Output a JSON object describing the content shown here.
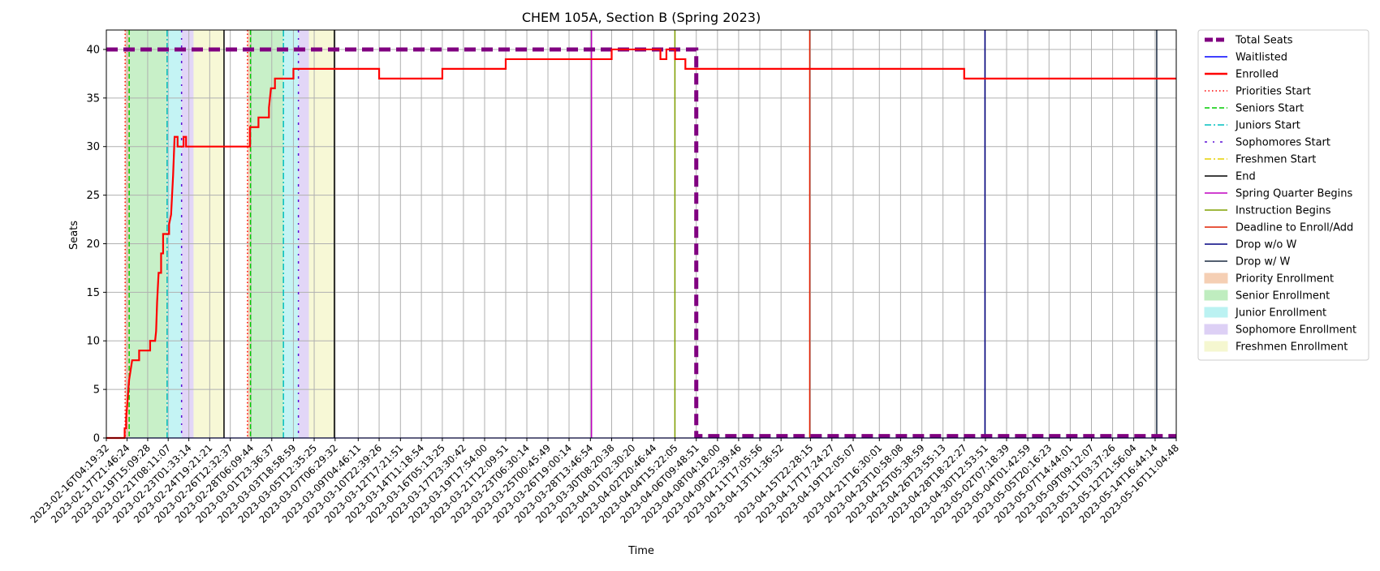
{
  "chart_data": {
    "type": "line",
    "title": "CHEM 105A, Section B (Spring 2023)",
    "xlabel": "Time",
    "ylabel": "Seats",
    "x_range": [
      "2023-02-16T04:19:32",
      "2023-05-16T11:04:48"
    ],
    "ylim": [
      0,
      42
    ],
    "y_ticks": [
      0,
      5,
      10,
      15,
      20,
      25,
      30,
      35,
      40
    ],
    "x_ticks": [
      "2023-02-16T04:19:32",
      "2023-02-17T21:46:24",
      "2023-02-19T15:09:28",
      "2023-02-21T08:11:07",
      "2023-02-23T01:33:14",
      "2023-02-24T19:21:21",
      "2023-02-26T12:32:37",
      "2023-02-28T06:09:44",
      "2023-03-01T23:36:37",
      "2023-03-03T18:58:59",
      "2023-03-05T12:35:25",
      "2023-03-07T06:29:32",
      "2023-03-09T04:46:11",
      "2023-03-10T22:39:26",
      "2023-03-12T17:21:51",
      "2023-03-14T11:18:54",
      "2023-03-16T05:13:25",
      "2023-03-17T23:30:42",
      "2023-03-19T17:54:00",
      "2023-03-21T12:09:51",
      "2023-03-23T06:30:14",
      "2023-03-25T00:45:49",
      "2023-03-26T19:00:14",
      "2023-03-28T13:46:54",
      "2023-03-30T08:20:38",
      "2023-04-01T02:30:20",
      "2023-04-02T20:46:44",
      "2023-04-04T15:22:05",
      "2023-04-06T09:48:51",
      "2023-04-08T04:18:00",
      "2023-04-09T22:39:46",
      "2023-04-11T17:05:56",
      "2023-04-13T11:36:52",
      "2023-04-15T22:28:15",
      "2023-04-17T17:24:27",
      "2023-04-19T12:05:07",
      "2023-04-21T16:30:01",
      "2023-04-23T10:58:08",
      "2023-04-25T05:38:59",
      "2023-04-26T23:55:13",
      "2023-04-28T18:22:27",
      "2023-04-30T12:53:51",
      "2023-05-02T07:18:39",
      "2023-05-04T01:42:59",
      "2023-05-05T20:16:23",
      "2023-05-07T14:44:01",
      "2023-05-09T09:12:07",
      "2023-05-11T03:37:26",
      "2023-05-12T21:56:04",
      "2023-05-14T16:44:14",
      "2023-05-16T11:04:48"
    ],
    "grid": true,
    "legend_position": "outside-right",
    "series": [
      {
        "name": "Total Seats",
        "color": "#800080",
        "style": "dashed-thick",
        "points": [
          [
            "2023-02-16T04:19:32",
            40
          ],
          [
            "2023-04-06T09:48:51",
            40
          ],
          [
            "2023-04-06T09:48:51",
            0.2
          ],
          [
            "2023-05-16T11:04:48",
            0.2
          ]
        ]
      },
      {
        "name": "Waitlisted",
        "color": "#0000ff",
        "style": "solid-thin",
        "points": [
          [
            "2023-02-16T04:19:32",
            0
          ],
          [
            "2023-05-16T11:04:48",
            0
          ]
        ]
      },
      {
        "name": "Enrolled",
        "color": "#ff0000",
        "style": "solid-thick",
        "points": [
          [
            "2023-02-16T04:19:32",
            0
          ],
          [
            "2023-02-17T17:00:00",
            0
          ],
          [
            "2023-02-17T17:00:00",
            1
          ],
          [
            "2023-02-17T20:00:00",
            1
          ],
          [
            "2023-02-17T20:00:00",
            2
          ],
          [
            "2023-02-17T23:00:00",
            4
          ],
          [
            "2023-02-18T02:00:00",
            6
          ],
          [
            "2023-02-18T05:00:00",
            7
          ],
          [
            "2023-02-18T08:00:00",
            8
          ],
          [
            "2023-02-18T22:00:00",
            8
          ],
          [
            "2023-02-18T22:00:00",
            9
          ],
          [
            "2023-02-19T20:00:00",
            9
          ],
          [
            "2023-02-19T20:00:00",
            10
          ],
          [
            "2023-02-20T06:00:00",
            10
          ],
          [
            "2023-02-20T08:00:00",
            11
          ],
          [
            "2023-02-20T10:00:00",
            14
          ],
          [
            "2023-02-20T13:00:00",
            17
          ],
          [
            "2023-02-20T18:00:00",
            17
          ],
          [
            "2023-02-20T18:00:00",
            19
          ],
          [
            "2023-02-20T22:00:00",
            19
          ],
          [
            "2023-02-20T22:00:00",
            21
          ],
          [
            "2023-02-21T10:00:00",
            21
          ],
          [
            "2023-02-21T10:00:00",
            22
          ],
          [
            "2023-02-21T14:00:00",
            23
          ],
          [
            "2023-02-21T18:00:00",
            27
          ],
          [
            "2023-02-21T21:00:00",
            31
          ],
          [
            "2023-02-22T03:00:00",
            31
          ],
          [
            "2023-02-22T03:00:00",
            30
          ],
          [
            "2023-02-22T15:00:00",
            30
          ],
          [
            "2023-02-22T15:00:00",
            31
          ],
          [
            "2023-02-22T20:00:00",
            31
          ],
          [
            "2023-02-22T20:00:00",
            30
          ],
          [
            "2023-02-28T04:00:00",
            30
          ],
          [
            "2023-02-28T04:00:00",
            32
          ],
          [
            "2023-02-28T21:00:00",
            32
          ],
          [
            "2023-02-28T21:00:00",
            33
          ],
          [
            "2023-03-01T18:00:00",
            33
          ],
          [
            "2023-03-01T18:00:00",
            34
          ],
          [
            "2023-03-01T22:00:00",
            36
          ],
          [
            "2023-03-02T06:00:00",
            36
          ],
          [
            "2023-03-02T06:00:00",
            37
          ],
          [
            "2023-03-03T19:00:00",
            37
          ],
          [
            "2023-03-03T19:00:00",
            38
          ],
          [
            "2023-03-10T22:39:26",
            38
          ],
          [
            "2023-03-10T22:39:26",
            37
          ],
          [
            "2023-03-16T05:13:25",
            37
          ],
          [
            "2023-03-16T05:13:25",
            38
          ],
          [
            "2023-03-21T12:09:51",
            38
          ],
          [
            "2023-03-21T12:09:51",
            39
          ],
          [
            "2023-03-30T08:20:38",
            39
          ],
          [
            "2023-03-30T08:20:38",
            40
          ],
          [
            "2023-04-03T10:00:00",
            40
          ],
          [
            "2023-04-03T10:00:00",
            39
          ],
          [
            "2023-04-03T22:00:00",
            39
          ],
          [
            "2023-04-03T22:00:00",
            40
          ],
          [
            "2023-04-04T15:22:05",
            40
          ],
          [
            "2023-04-04T15:22:05",
            39
          ],
          [
            "2023-04-05T12:00:00",
            39
          ],
          [
            "2023-04-05T12:00:00",
            38
          ],
          [
            "2023-04-28T18:22:27",
            38
          ],
          [
            "2023-04-28T18:22:27",
            37
          ],
          [
            "2023-05-16T11:04:48",
            37
          ]
        ]
      }
    ],
    "vlines": [
      {
        "name": "Priorities Start",
        "color": "#ff0000",
        "style": "dotted",
        "x": [
          "2023-02-17T18:00:00",
          "2023-02-27T23:00:00"
        ]
      },
      {
        "name": "Seniors Start",
        "color": "#00cc00",
        "style": "dashed",
        "x": [
          "2023-02-18T02:00:00",
          "2023-02-28T05:00:00"
        ]
      },
      {
        "name": "Juniors Start",
        "color": "#00bfbf",
        "style": "dashdot",
        "x": [
          "2023-02-21T06:00:00",
          "2023-03-02T23:00:00"
        ]
      },
      {
        "name": "Sophomores Start",
        "color": "#5b0fd6",
        "style": "loosely-dashdot",
        "x": [
          "2023-02-22T11:00:00",
          "2023-03-04T05:00:00"
        ]
      },
      {
        "name": "Freshmen Start",
        "color": "#e6d000",
        "style": "dashdot",
        "x": []
      },
      {
        "name": "End",
        "color": "#000000",
        "style": "solid",
        "x": [
          "2023-02-26T00:00:00",
          "2023-03-07T05:00:00"
        ]
      },
      {
        "name": "Spring Quarter Begins",
        "color": "#c000c0",
        "style": "solid",
        "x": [
          "2023-03-28T16:00:00"
        ]
      },
      {
        "name": "Instruction Begins",
        "color": "#80a000",
        "style": "solid",
        "x": [
          "2023-04-04T15:00:00"
        ]
      },
      {
        "name": "Deadline to Enroll/Add",
        "color": "#e02000",
        "style": "solid",
        "x": [
          "2023-04-15T21:00:00"
        ]
      },
      {
        "name": "Drop w/o W",
        "color": "#000080",
        "style": "solid",
        "x": [
          "2023-04-30T12:00:00"
        ]
      },
      {
        "name": "Drop w/ W",
        "color": "#1a2a40",
        "style": "solid",
        "x": [
          "2023-05-14T20:00:00"
        ]
      }
    ],
    "spans": [
      {
        "name": "Priority Enrollment",
        "color": "#f4c7a8",
        "ranges": [
          [
            "2023-02-17T18:00:00",
            "2023-02-18T02:00:00"
          ],
          [
            "2023-02-27T23:00:00",
            "2023-02-28T05:00:00"
          ]
        ]
      },
      {
        "name": "Senior Enrollment",
        "color": "#b5ebb5",
        "ranges": [
          [
            "2023-02-18T02:00:00",
            "2023-02-21T06:00:00"
          ],
          [
            "2023-02-28T05:00:00",
            "2023-03-02T23:00:00"
          ]
        ]
      },
      {
        "name": "Junior Enrollment",
        "color": "#b0f0f0",
        "ranges": [
          [
            "2023-02-21T06:00:00",
            "2023-02-22T11:00:00"
          ],
          [
            "2023-03-02T23:00:00",
            "2023-03-04T05:00:00"
          ]
        ]
      },
      {
        "name": "Sophomore Enrollment",
        "color": "#d8c8f4",
        "ranges": [
          [
            "2023-02-22T11:00:00",
            "2023-02-23T11:00:00"
          ],
          [
            "2023-03-04T05:00:00",
            "2023-03-05T02:00:00"
          ]
        ]
      },
      {
        "name": "Freshmen Enrollment",
        "color": "#f4f6c8",
        "ranges": [
          [
            "2023-02-23T11:00:00",
            "2023-02-26T00:00:00"
          ],
          [
            "2023-03-05T02:00:00",
            "2023-03-07T05:00:00"
          ]
        ]
      }
    ]
  }
}
